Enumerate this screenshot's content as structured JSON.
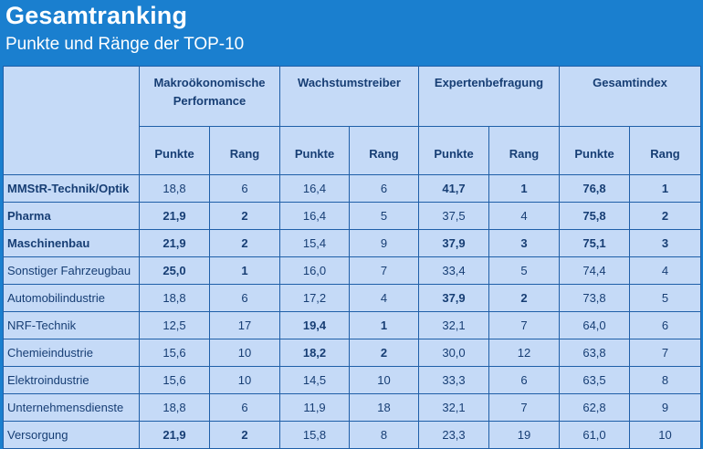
{
  "header": {
    "title": "Gesamtranking",
    "subtitle": "Punkte und Ränge der TOP-10"
  },
  "colors": {
    "background": "#1a7fcf",
    "table_fill": "#c5daf7",
    "text": "#173e74",
    "grid": "#1f5fa8"
  },
  "chart_data": {
    "type": "table",
    "column_groups": [
      "Makroökonomische Performance",
      "Wachstumstreiber",
      "Expertenbefragung",
      "Gesamtindex"
    ],
    "sub_columns": [
      "Punkte",
      "Rang"
    ],
    "rows": [
      {
        "name": "MMStR-Technik/Optik",
        "name_bold": true,
        "values": [
          "18,8",
          "6",
          "16,4",
          "6",
          "41,7",
          "1",
          "76,8",
          "1"
        ],
        "bold": [
          false,
          false,
          false,
          false,
          true,
          true,
          true,
          true
        ]
      },
      {
        "name": "Pharma",
        "name_bold": true,
        "values": [
          "21,9",
          "2",
          "16,4",
          "5",
          "37,5",
          "4",
          "75,8",
          "2"
        ],
        "bold": [
          true,
          true,
          false,
          false,
          false,
          false,
          true,
          true
        ]
      },
      {
        "name": "Maschinenbau",
        "name_bold": true,
        "values": [
          "21,9",
          "2",
          "15,4",
          "9",
          "37,9",
          "3",
          "75,1",
          "3"
        ],
        "bold": [
          true,
          true,
          false,
          false,
          true,
          true,
          true,
          true
        ]
      },
      {
        "name": "Sonstiger Fahrzeugbau",
        "name_bold": false,
        "values": [
          "25,0",
          "1",
          "16,0",
          "7",
          "33,4",
          "5",
          "74,4",
          "4"
        ],
        "bold": [
          true,
          true,
          false,
          false,
          false,
          false,
          false,
          false
        ]
      },
      {
        "name": "Automobilindustrie",
        "name_bold": false,
        "values": [
          "18,8",
          "6",
          "17,2",
          "4",
          "37,9",
          "2",
          "73,8",
          "5"
        ],
        "bold": [
          false,
          false,
          false,
          false,
          true,
          true,
          false,
          false
        ]
      },
      {
        "name": "NRF-Technik",
        "name_bold": false,
        "values": [
          "12,5",
          "17",
          "19,4",
          "1",
          "32,1",
          "7",
          "64,0",
          "6"
        ],
        "bold": [
          false,
          false,
          true,
          true,
          false,
          false,
          false,
          false
        ]
      },
      {
        "name": "Chemieindustrie",
        "name_bold": false,
        "values": [
          "15,6",
          "10",
          "18,2",
          "2",
          "30,0",
          "12",
          "63,8",
          "7"
        ],
        "bold": [
          false,
          false,
          true,
          true,
          false,
          false,
          false,
          false
        ]
      },
      {
        "name": "Elektroindustrie",
        "name_bold": false,
        "values": [
          "15,6",
          "10",
          "14,5",
          "10",
          "33,3",
          "6",
          "63,5",
          "8"
        ],
        "bold": [
          false,
          false,
          false,
          false,
          false,
          false,
          false,
          false
        ]
      },
      {
        "name": "Unternehmensdienste",
        "name_bold": false,
        "values": [
          "18,8",
          "6",
          "11,9",
          "18",
          "32,1",
          "7",
          "62,8",
          "9"
        ],
        "bold": [
          false,
          false,
          false,
          false,
          false,
          false,
          false,
          false
        ]
      },
      {
        "name": "Versorgung",
        "name_bold": false,
        "values": [
          "21,9",
          "2",
          "15,8",
          "8",
          "23,3",
          "19",
          "61,0",
          "10"
        ],
        "bold": [
          true,
          true,
          false,
          false,
          false,
          false,
          false,
          false
        ]
      }
    ]
  }
}
